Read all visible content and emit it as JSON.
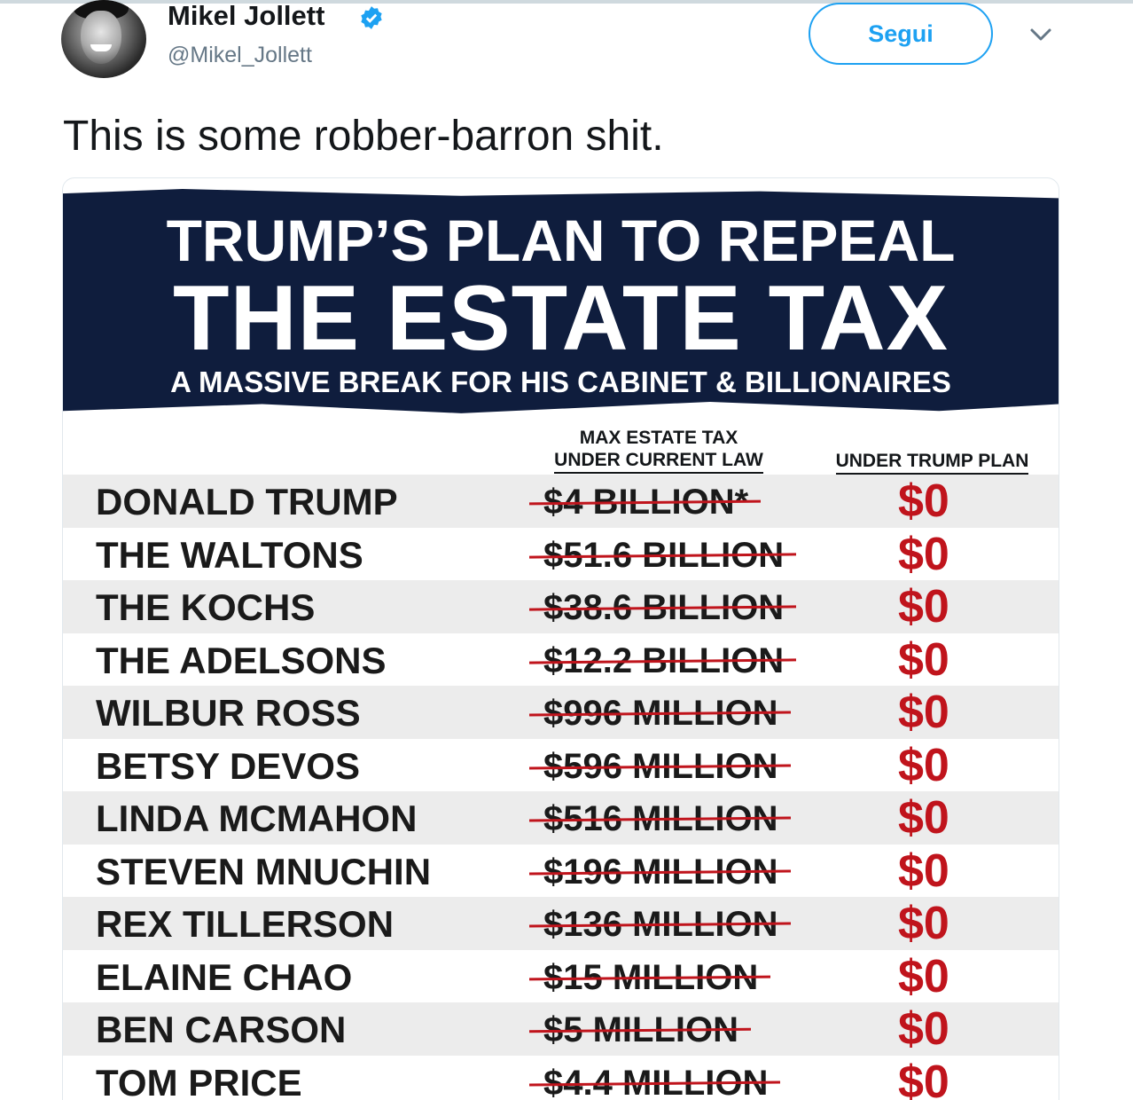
{
  "tweet": {
    "author_name": "Mikel Jollett",
    "author_handle": "@Mikel_Jollett",
    "follow_label": "Segui",
    "text": "This is some robber-barron shit."
  },
  "image": {
    "title_line1": "TRUMP’S PLAN TO REPEAL",
    "title_line2": "THE ESTATE TAX",
    "title_line3": "A MASSIVE BREAK FOR HIS CABINET & BILLIONAIRES",
    "col_current_line1": "MAX ESTATE TAX",
    "col_current_line2": "UNDER CURRENT LAW",
    "col_trump": "UNDER TRUMP PLAN",
    "rows": [
      {
        "name": "DONALD TRUMP",
        "current": "$4 BILLION*",
        "trump": "$0"
      },
      {
        "name": "THE WALTONS",
        "current": "$51.6 BILLION",
        "trump": "$0"
      },
      {
        "name": "THE KOCHS",
        "current": "$38.6 BILLION",
        "trump": "$0"
      },
      {
        "name": "THE ADELSONS",
        "current": "$12.2 BILLION",
        "trump": "$0"
      },
      {
        "name": "WILBUR ROSS",
        "current": "$996 MILLION",
        "trump": "$0"
      },
      {
        "name": "BETSY DEVOS",
        "current": "$596 MILLION",
        "trump": "$0"
      },
      {
        "name": "LINDA MCMAHON",
        "current": "$516 MILLION",
        "trump": "$0"
      },
      {
        "name": "STEVEN MNUCHIN",
        "current": "$196 MILLION",
        "trump": "$0"
      },
      {
        "name": "REX TILLERSON",
        "current": "$136 MILLION",
        "trump": "$0"
      },
      {
        "name": "ELAINE CHAO",
        "current": "$15 MILLION",
        "trump": "$0"
      },
      {
        "name": "BEN CARSON",
        "current": "$5 MILLION",
        "trump": "$0"
      },
      {
        "name": "TOM PRICE",
        "current": "$4.4 MILLION",
        "trump": "$0"
      }
    ]
  },
  "colors": {
    "link_blue": "#1da1f2",
    "banner_navy": "#0f1d3d",
    "strike_red": "#c0141c"
  }
}
